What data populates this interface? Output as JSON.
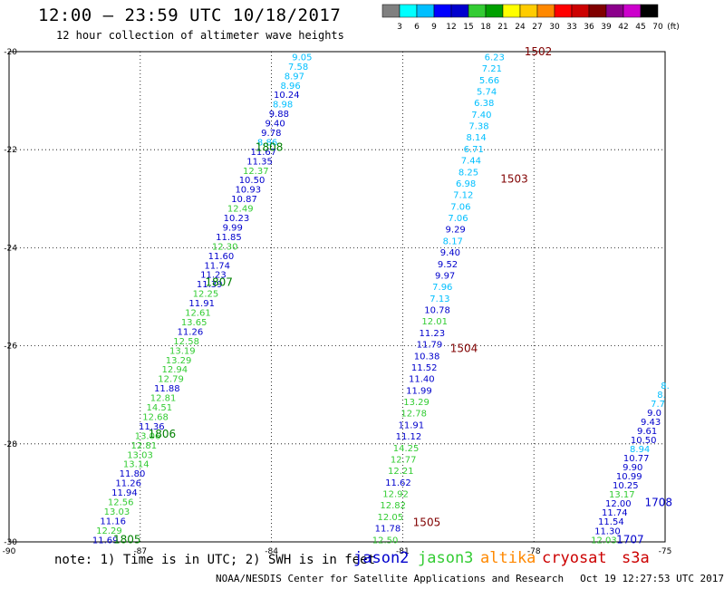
{
  "header": {
    "title": "12:00 – 23:59 UTC 10/18/2017",
    "subtitle": "12 hour collection of altimeter wave heights"
  },
  "colorbar": {
    "labels": [
      "3",
      "6",
      "9",
      "12",
      "15",
      "18",
      "21",
      "24",
      "27",
      "30",
      "33",
      "36",
      "39",
      "42",
      "45",
      "70",
      "(ft)"
    ],
    "colors": [
      "#808080",
      "#00ffff",
      "#00bfff",
      "#0000ff",
      "#0000cd",
      "#33cc33",
      "#00a000",
      "#ffff00",
      "#ffcc00",
      "#ff8800",
      "#ff0000",
      "#cc0000",
      "#800000",
      "#8b008b",
      "#cc00cc",
      "#000000"
    ]
  },
  "axes": {
    "x_labels": [
      "-90",
      "-87",
      "-84",
      "-81",
      "-78",
      "-75"
    ],
    "y_labels": [
      "-20",
      "-22",
      "-24",
      "-26",
      "-28",
      "-30"
    ]
  },
  "colors": {
    "jason2": "#0000cc",
    "jason3": "#33cc33",
    "altika": "#ff8800",
    "cryosat": "#cc0000",
    "s3a": "#cc0000",
    "cyan": "#00bfff",
    "darkred": "#800000",
    "darkgreen": "#008000"
  },
  "tracks": [
    {
      "lon0": -83.3,
      "lat0": -20.1,
      "lon1": -87.8,
      "lat1": -29.95,
      "values": [
        {
          "v": "9.05",
          "c": "cyan"
        },
        {
          "v": "7.58",
          "c": "cyan"
        },
        {
          "v": "8.97",
          "c": "cyan"
        },
        {
          "v": "8.96",
          "c": "cyan"
        },
        {
          "v": "10.24",
          "c": "jason2"
        },
        {
          "v": "8.98",
          "c": "cyan"
        },
        {
          "v": "9.88",
          "c": "jason2"
        },
        {
          "v": "9.40",
          "c": "jason2"
        },
        {
          "v": "9.78",
          "c": "jason2"
        },
        {
          "v": "8.86",
          "c": "cyan"
        },
        {
          "v": "11.67",
          "c": "jason2"
        },
        {
          "v": "11.35",
          "c": "jason2"
        },
        {
          "v": "12.37",
          "c": "jason3"
        },
        {
          "v": "10.50",
          "c": "jason2"
        },
        {
          "v": "10.93",
          "c": "jason2"
        },
        {
          "v": "10.87",
          "c": "jason2"
        },
        {
          "v": "12.49",
          "c": "jason3"
        },
        {
          "v": "10.23",
          "c": "jason2"
        },
        {
          "v": "9.99",
          "c": "jason2"
        },
        {
          "v": "11.85",
          "c": "jason2"
        },
        {
          "v": "12.30",
          "c": "jason3"
        },
        {
          "v": "11.60",
          "c": "jason2"
        },
        {
          "v": "11.74",
          "c": "jason2"
        },
        {
          "v": "11.23",
          "c": "jason2"
        },
        {
          "v": "11.39",
          "c": "jason2"
        },
        {
          "v": "12.25",
          "c": "jason3"
        },
        {
          "v": "11.91",
          "c": "jason2"
        },
        {
          "v": "12.61",
          "c": "jason3"
        },
        {
          "v": "13.65",
          "c": "jason3"
        },
        {
          "v": "11.26",
          "c": "jason2"
        },
        {
          "v": "12.58",
          "c": "jason3"
        },
        {
          "v": "13.19",
          "c": "jason3"
        },
        {
          "v": "13.29",
          "c": "jason3"
        },
        {
          "v": "12.94",
          "c": "jason3"
        },
        {
          "v": "12.79",
          "c": "jason3"
        },
        {
          "v": "11.88",
          "c": "jason2"
        },
        {
          "v": "12.81",
          "c": "jason3"
        },
        {
          "v": "14.51",
          "c": "jason3"
        },
        {
          "v": "12.68",
          "c": "jason3"
        },
        {
          "v": "11.36",
          "c": "jason2"
        },
        {
          "v": "13.06",
          "c": "jason3"
        },
        {
          "v": "12.81",
          "c": "jason3"
        },
        {
          "v": "13.03",
          "c": "jason3"
        },
        {
          "v": "13.14",
          "c": "jason3"
        },
        {
          "v": "11.80",
          "c": "jason2"
        },
        {
          "v": "11.26",
          "c": "jason2"
        },
        {
          "v": "11.94",
          "c": "jason2"
        },
        {
          "v": "12.56",
          "c": "jason3"
        },
        {
          "v": "13.03",
          "c": "jason3"
        },
        {
          "v": "11.16",
          "c": "jason2"
        },
        {
          "v": "12.29",
          "c": "jason3"
        },
        {
          "v": "11.69",
          "c": "jason2"
        }
      ],
      "times": [
        {
          "t": "1808",
          "lat": -21.95,
          "lon": -84.05,
          "c": "darkgreen"
        },
        {
          "t": "1807",
          "lat": -24.7,
          "lon": -85.2,
          "c": "darkgreen"
        },
        {
          "t": "1806",
          "lat": -27.8,
          "lon": -86.5,
          "c": "darkgreen"
        },
        {
          "t": "1805",
          "lat": -29.95,
          "lon": -87.3,
          "c": "darkgreen"
        }
      ]
    },
    {
      "lon0": -78.9,
      "lat0": -20.1,
      "lon1": -81.4,
      "lat1": -29.95,
      "values": [
        {
          "v": "6.23",
          "c": "cyan"
        },
        {
          "v": "7.21",
          "c": "cyan"
        },
        {
          "v": "5.66",
          "c": "cyan"
        },
        {
          "v": "5.74",
          "c": "cyan"
        },
        {
          "v": "6.38",
          "c": "cyan"
        },
        {
          "v": "7.40",
          "c": "cyan"
        },
        {
          "v": "7.38",
          "c": "cyan"
        },
        {
          "v": "8.14",
          "c": "cyan"
        },
        {
          "v": "6.71",
          "c": "cyan"
        },
        {
          "v": "7.44",
          "c": "cyan"
        },
        {
          "v": "8.25",
          "c": "cyan"
        },
        {
          "v": "6.98",
          "c": "cyan"
        },
        {
          "v": "7.12",
          "c": "cyan"
        },
        {
          "v": "7.06",
          "c": "cyan"
        },
        {
          "v": "7.06",
          "c": "cyan"
        },
        {
          "v": "9.29",
          "c": "jason2"
        },
        {
          "v": "8.17",
          "c": "cyan"
        },
        {
          "v": "9.40",
          "c": "jason2"
        },
        {
          "v": "9.52",
          "c": "jason2"
        },
        {
          "v": "9.97",
          "c": "jason2"
        },
        {
          "v": "7.96",
          "c": "cyan"
        },
        {
          "v": "7.13",
          "c": "cyan"
        },
        {
          "v": "10.78",
          "c": "jason2"
        },
        {
          "v": "12.01",
          "c": "jason3"
        },
        {
          "v": "11.23",
          "c": "jason2"
        },
        {
          "v": "11.79",
          "c": "jason2"
        },
        {
          "v": "10.38",
          "c": "jason2"
        },
        {
          "v": "11.52",
          "c": "jason2"
        },
        {
          "v": "11.40",
          "c": "jason2"
        },
        {
          "v": "11.99",
          "c": "jason2"
        },
        {
          "v": "13.29",
          "c": "jason3"
        },
        {
          "v": "12.78",
          "c": "jason3"
        },
        {
          "v": "11.91",
          "c": "jason2"
        },
        {
          "v": "11.12",
          "c": "jason2"
        },
        {
          "v": "14.25",
          "c": "jason3"
        },
        {
          "v": "12.77",
          "c": "jason3"
        },
        {
          "v": "12.21",
          "c": "jason3"
        },
        {
          "v": "11.62",
          "c": "jason2"
        },
        {
          "v": "12.92",
          "c": "jason3"
        },
        {
          "v": "12.82",
          "c": "jason3"
        },
        {
          "v": "12.05",
          "c": "jason3"
        },
        {
          "v": "11.78",
          "c": "jason2"
        },
        {
          "v": "12.50",
          "c": "jason3"
        }
      ],
      "times": [
        {
          "t": "1502",
          "lat": -20.0,
          "lon": -77.9,
          "c": "darkred"
        },
        {
          "t": "1503",
          "lat": -22.6,
          "lon": -78.45,
          "c": "darkred"
        },
        {
          "t": "1504",
          "lat": -26.05,
          "lon": -79.6,
          "c": "darkred"
        },
        {
          "t": "1505",
          "lat": -29.6,
          "lon": -80.45,
          "c": "darkred"
        }
      ]
    },
    {
      "lon0": -75.0,
      "lat0": -26.8,
      "lon1": -76.4,
      "lat1": -29.95,
      "values": [
        {
          "v": "8.",
          "c": "cyan"
        },
        {
          "v": "8.",
          "c": "cyan"
        },
        {
          "v": "7.7",
          "c": "cyan"
        },
        {
          "v": "9.0",
          "c": "jason2"
        },
        {
          "v": "9.43",
          "c": "jason2"
        },
        {
          "v": "9.61",
          "c": "jason2"
        },
        {
          "v": "10.50",
          "c": "jason2"
        },
        {
          "v": "8.94",
          "c": "cyan"
        },
        {
          "v": "10.77",
          "c": "jason2"
        },
        {
          "v": "9.90",
          "c": "jason2"
        },
        {
          "v": "10.99",
          "c": "jason2"
        },
        {
          "v": "10.25",
          "c": "jason2"
        },
        {
          "v": "13.17",
          "c": "jason3"
        },
        {
          "v": "12.00",
          "c": "jason2"
        },
        {
          "v": "11.74",
          "c": "jason2"
        },
        {
          "v": "11.54",
          "c": "jason2"
        },
        {
          "v": "11.30",
          "c": "jason2"
        },
        {
          "v": "12.03",
          "c": "jason3"
        }
      ],
      "times": [
        {
          "t": "1708",
          "lat": -29.2,
          "lon": -75.15,
          "c": "jason2"
        },
        {
          "t": "1707",
          "lat": -29.95,
          "lon": -75.8,
          "c": "jason2"
        }
      ]
    }
  ],
  "note": "note: 1) Time is in UTC; 2) SWH is in feet",
  "legend": [
    {
      "label": "jason2",
      "color": "#0000cc"
    },
    {
      "label": "jason3",
      "color": "#33cc33"
    },
    {
      "label": "altika",
      "color": "#ff8800"
    },
    {
      "label": "cryosat",
      "color": "#cc0000"
    },
    {
      "label": "s3a",
      "color": "#cc0000"
    }
  ],
  "footer": {
    "org": "NOAA/NESDIS Center for Satellite Applications and Research",
    "timestamp": "Oct 19 12:27:53 UTC 2017"
  }
}
